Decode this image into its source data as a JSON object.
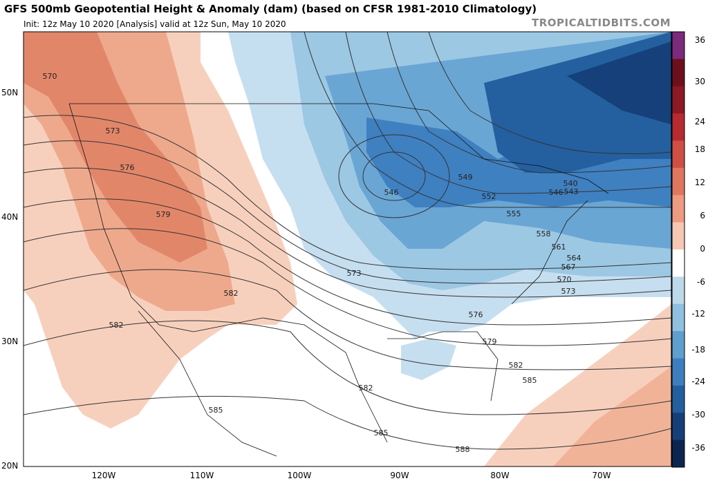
{
  "header": {
    "title": "GFS 500mb Geopotential Height & Anomaly (dam) (based on CFSR 1981-2010 Climatology)",
    "subtitle": "Init: 12z May 10 2020   [Analysis]   valid at 12z Sun, May 10 2020",
    "site": "TROPICALTIDBITS.COM"
  },
  "map": {
    "lat_labels": [
      "50N",
      "40N",
      "30N",
      "20N"
    ],
    "lon_labels": [
      "120W",
      "110W",
      "100W",
      "90W",
      "80W",
      "70W"
    ],
    "contour_labels": [
      "570",
      "573",
      "576",
      "579",
      "582",
      "582",
      "573",
      "546",
      "549",
      "552",
      "555",
      "558",
      "561",
      "564",
      "567",
      "570",
      "573",
      "576",
      "579",
      "582",
      "582",
      "585",
      "585",
      "585",
      "588",
      "540",
      "543",
      "546"
    ],
    "colors": {
      "neg": "#2f6db5",
      "pos": "#e08866",
      "zero": "#ffffff",
      "contour": "#333333"
    }
  },
  "colorbar": {
    "labels": [
      "36",
      "30",
      "24",
      "18",
      "12",
      "6",
      "0",
      "-6",
      "-12",
      "-18",
      "-24",
      "-30",
      "-36"
    ],
    "colors": [
      "#7b2a7c",
      "#6d0f1c",
      "#8b1a24",
      "#b52b2f",
      "#cf4f45",
      "#e0765e",
      "#ec9a80",
      "#f6c7b2",
      "#ffffff",
      "#bcd9ea",
      "#8fc0df",
      "#5e9fcf",
      "#3d7fbe",
      "#235f9f",
      "#163f78",
      "#0c2550"
    ]
  }
}
